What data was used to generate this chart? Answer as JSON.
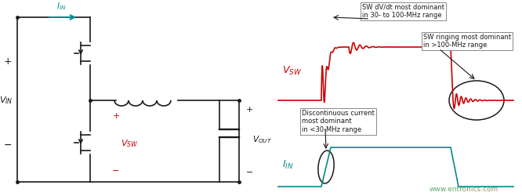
{
  "bg_color": "#ffffff",
  "circuit_color": "#1a1a1a",
  "red_color": "#cc0000",
  "teal_color": "#008b8b",
  "green_watermark": "#4a9a4a",
  "watermark": "www.entronics.com",
  "annotation1": "SW dV/dt most dominant\nin 30- to 100-MHz range",
  "annotation2": "SW ringing most dominant\nin >100-MHz range",
  "annotation3": "Discontinuous current\nmost dominant\nin <30-MHz range"
}
